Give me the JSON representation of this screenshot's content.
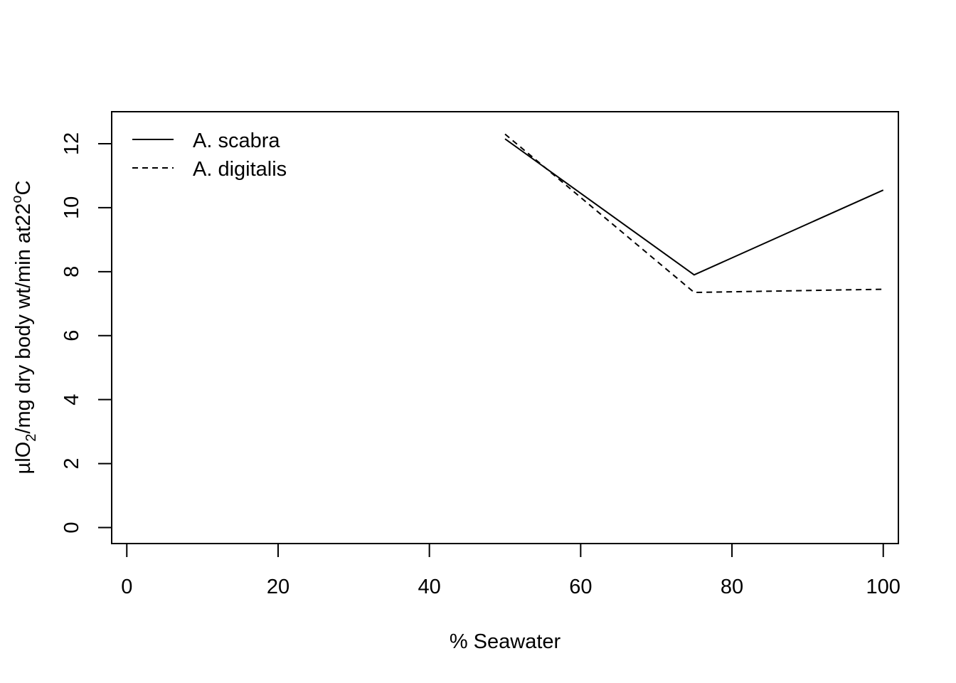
{
  "chart_data": {
    "type": "line",
    "title": "",
    "xlabel": "% Seawater",
    "ylabel": {
      "prefix": "µlO",
      "sub": "2",
      "middle": "/mg dry body wt/min at22",
      "sup": "o",
      "suffix": "C"
    },
    "xlim": [
      -2,
      102
    ],
    "ylim": [
      -0.5,
      13
    ],
    "x_ticks": [
      0,
      20,
      40,
      60,
      80,
      100
    ],
    "y_ticks": [
      0,
      2,
      4,
      6,
      8,
      10,
      12
    ],
    "x_tick_labels": [
      "0",
      "20",
      "40",
      "60",
      "80",
      "100"
    ],
    "y_tick_labels": [
      "0",
      "2",
      "4",
      "6",
      "8",
      "10",
      "12"
    ],
    "grid": false,
    "legend_position": "top-left",
    "series": [
      {
        "name": "A. scabra",
        "style": "solid",
        "x": [
          50,
          75,
          100
        ],
        "y": [
          12.15,
          7.9,
          10.55
        ]
      },
      {
        "name": "A. digitalis",
        "style": "dashed",
        "x": [
          50,
          75,
          100
        ],
        "y": [
          12.3,
          7.35,
          7.45
        ]
      }
    ]
  }
}
